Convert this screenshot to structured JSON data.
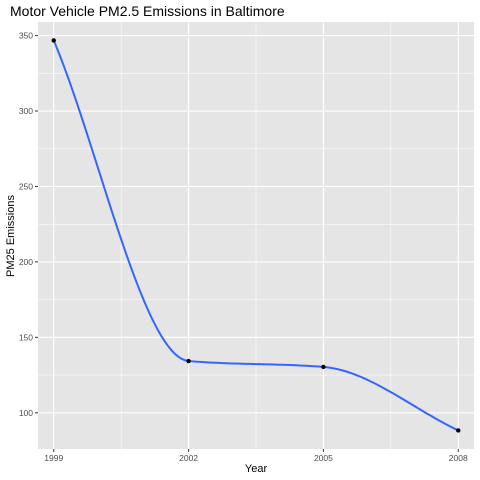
{
  "chart_data": {
    "type": "line",
    "title": "Motor Vehicle PM2.5 Emissions in Baltimore",
    "xlabel": "Year",
    "ylabel": "PM25 Emissions",
    "x": [
      1999,
      2002,
      2005,
      2008
    ],
    "values": [
      346.8,
      134.3,
      130.4,
      88.3
    ],
    "xlim": [
      1998.65,
      2008.35
    ],
    "ylim": [
      76,
      359
    ],
    "x_ticks": [
      "1999",
      "2002",
      "2005",
      "2008"
    ],
    "y_ticks": [
      "100",
      "150",
      "200",
      "250",
      "300",
      "350"
    ],
    "smoothed_line": true,
    "grid": true,
    "colors": {
      "panel": "#e5e5e5",
      "grid": "#ffffff",
      "line": "#3366ff",
      "point": "#000000",
      "tick": "#4d4d4d"
    }
  }
}
